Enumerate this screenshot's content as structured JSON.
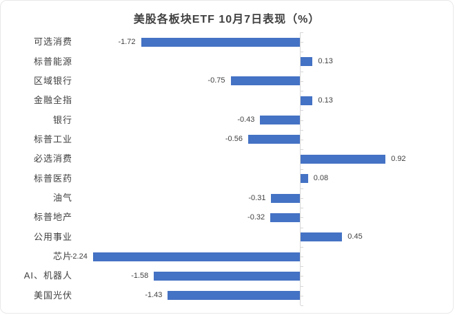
{
  "chart_data": {
    "type": "bar",
    "orientation": "horizontal",
    "title": "美股各板块ETF 10月7日表现（%）",
    "categories": [
      "可选消费",
      "标普能源",
      "区域银行",
      "金融全指",
      "银行",
      "标普工业",
      "必选消费",
      "标普医药",
      "油气",
      "标普地产",
      "公用事业",
      "芯片",
      "AI、机器人",
      "美国光伏"
    ],
    "values": [
      -1.72,
      0.13,
      -0.75,
      0.13,
      -0.43,
      -0.56,
      0.92,
      0.08,
      -0.31,
      -0.32,
      0.45,
      -2.24,
      -1.58,
      -1.43
    ],
    "value_labels": [
      "-1.72",
      "0.13",
      "-0.75",
      "0.13",
      "-0.43",
      "-0.56",
      "0.92",
      "0.08",
      "-0.31",
      "-0.32",
      "0.45",
      "-2.24",
      "-1.58",
      "-1.43"
    ],
    "xlim": [
      -2.4,
      1.1
    ],
    "xlabel": "",
    "ylabel": "",
    "legend": false,
    "grid": false,
    "data_labels": true,
    "colors": {
      "bar": "#4472C4",
      "axis": "#d6d6d6",
      "title": "#404040",
      "label": "#404040"
    }
  }
}
